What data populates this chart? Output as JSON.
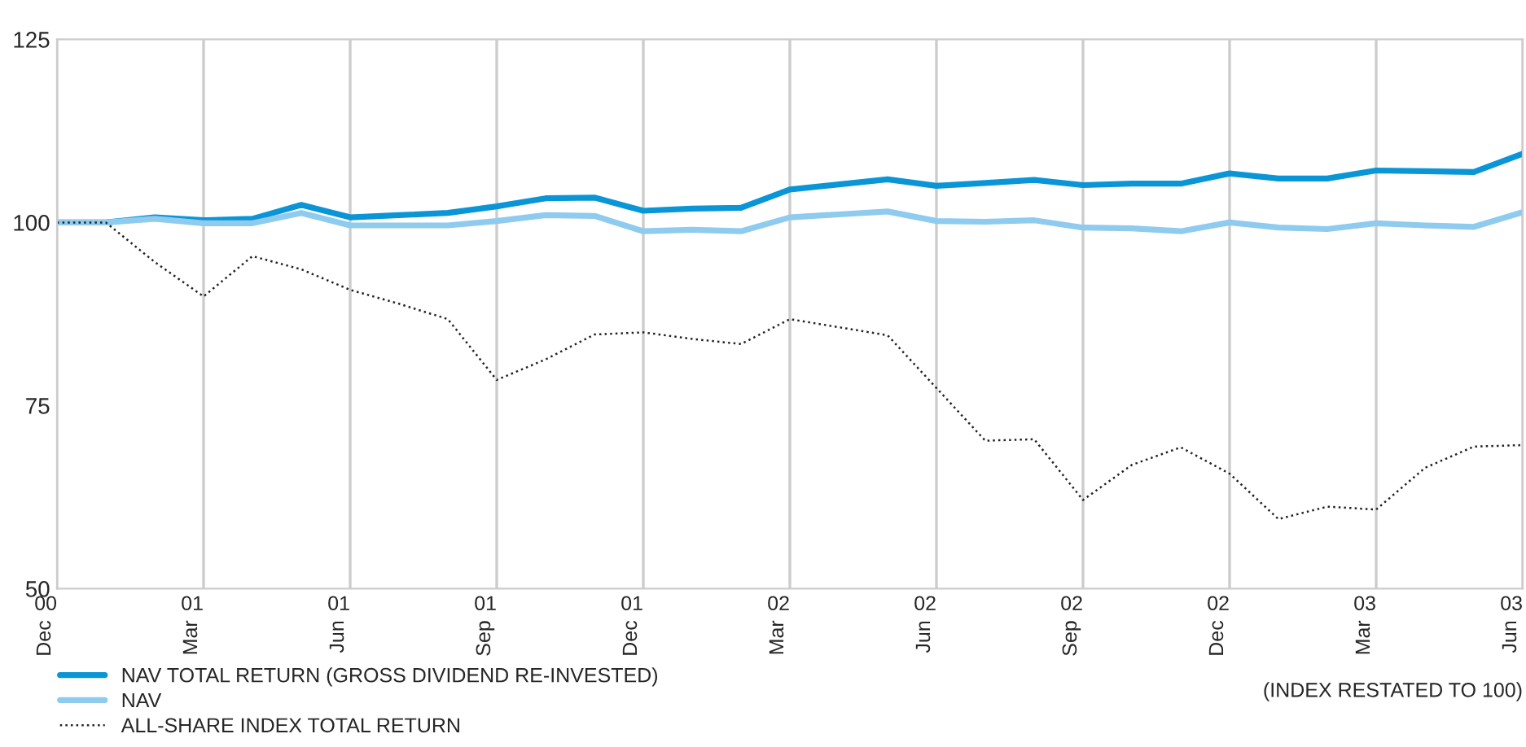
{
  "chart_data": {
    "type": "line",
    "categories": [
      "00 Dec",
      null,
      null,
      "01 Mar",
      null,
      null,
      "01 Jun",
      null,
      null,
      "01 Sep",
      null,
      null,
      "01 Dec",
      null,
      null,
      "02 Mar",
      null,
      null,
      "02 Jun",
      null,
      null,
      "02 Sep",
      null,
      null,
      "02 Dec",
      null,
      null,
      "03 Mar",
      null,
      null,
      "03 Jun"
    ],
    "series": [
      {
        "name": "NAV TOTAL RETURN (GROSS DIVIDEND RE-INVESTED)",
        "color": "#0a96d6",
        "line_style": "solid",
        "values": [
          100,
          100,
          100.7,
          100.3,
          100.5,
          102.4,
          100.7,
          101.0,
          101.3,
          102.2,
          103.3,
          103.4,
          101.6,
          101.9,
          102.0,
          104.5,
          105.2,
          105.9,
          105.0,
          105.4,
          105.8,
          105.1,
          105.3,
          105.3,
          106.7,
          106.0,
          106.0,
          107.1,
          107.0,
          106.9,
          109.4
        ]
      },
      {
        "name": "NAV",
        "color": "#8ecbef",
        "line_style": "solid",
        "values": [
          100,
          100,
          100.5,
          99.9,
          99.9,
          101.3,
          99.6,
          99.6,
          99.6,
          100.2,
          101.0,
          100.9,
          98.8,
          99.0,
          98.8,
          100.7,
          101.1,
          101.5,
          100.2,
          100.1,
          100.3,
          99.3,
          99.2,
          98.8,
          100.0,
          99.3,
          99.1,
          99.9,
          99.6,
          99.4,
          101.4
        ]
      },
      {
        "name": "ALL-SHARE INDEX TOTAL RETURN",
        "color": "#222222",
        "line_style": "dotted",
        "values": [
          100,
          100,
          94.6,
          89.9,
          95.4,
          93.6,
          90.8,
          88.9,
          86.8,
          78.5,
          81.3,
          84.7,
          85.0,
          84.1,
          83.4,
          86.8,
          85.7,
          84.6,
          77.4,
          70.2,
          70.4,
          62.1,
          66.9,
          69.3,
          65.7,
          59.5,
          61.2,
          60.8,
          66.5,
          69.4,
          69.6
        ]
      }
    ],
    "ylim": [
      50,
      125
    ],
    "yticks": [
      50,
      75,
      100,
      125
    ],
    "grid": "x",
    "legend": "bottom left",
    "marker": "none",
    "annotations": [
      "(INDEX RESTATED TO 100)"
    ]
  }
}
